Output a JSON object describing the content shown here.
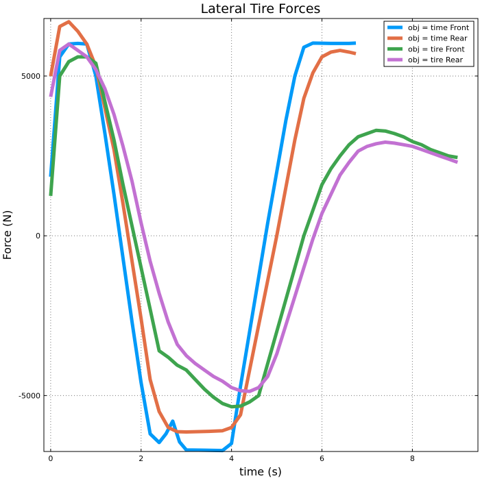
{
  "colors": {
    "background": "#ffffff",
    "axes": "#000000",
    "grid": "#000000"
  },
  "chart_data": {
    "type": "line",
    "title": "Lateral Tire Forces",
    "xlabel": "time (s)",
    "ylabel": "Force (N)",
    "xlim": [
      -0.15,
      9.45
    ],
    "ylim": [
      -6750,
      6800
    ],
    "xticks": [
      0,
      2,
      4,
      6,
      8
    ],
    "xtick_labels": [
      "0",
      "2",
      "4",
      "6",
      "8"
    ],
    "yticks": [
      -5000,
      0,
      5000
    ],
    "ytick_labels": [
      "-5000",
      "0",
      "5000"
    ],
    "grid": true,
    "legend_position": "top-right",
    "series": [
      {
        "name": "obj = time Front",
        "color": "#009af9",
        "points": [
          [
            0,
            1850
          ],
          [
            0.2,
            5600
          ],
          [
            0.4,
            6000
          ],
          [
            0.6,
            6020
          ],
          [
            0.8,
            6000
          ],
          [
            1.0,
            5000
          ],
          [
            1.2,
            3200
          ],
          [
            1.4,
            1300
          ],
          [
            1.6,
            -700
          ],
          [
            1.8,
            -2700
          ],
          [
            2.0,
            -4600
          ],
          [
            2.2,
            -6200
          ],
          [
            2.4,
            -6470
          ],
          [
            2.55,
            -6200
          ],
          [
            2.7,
            -5800
          ],
          [
            2.85,
            -6450
          ],
          [
            3.0,
            -6700
          ],
          [
            3.4,
            -6710
          ],
          [
            3.8,
            -6720
          ],
          [
            4.0,
            -6500
          ],
          [
            4.2,
            -4700
          ],
          [
            4.4,
            -3000
          ],
          [
            4.6,
            -1300
          ],
          [
            4.8,
            400
          ],
          [
            5.0,
            2000
          ],
          [
            5.2,
            3600
          ],
          [
            5.4,
            5000
          ],
          [
            5.6,
            5900
          ],
          [
            5.8,
            6030
          ],
          [
            6.2,
            6020
          ],
          [
            6.6,
            6020
          ],
          [
            6.75,
            6030
          ]
        ]
      },
      {
        "name": "obj = time Rear",
        "color": "#e26f46",
        "points": [
          [
            0,
            5000
          ],
          [
            0.2,
            6550
          ],
          [
            0.4,
            6700
          ],
          [
            0.6,
            6400
          ],
          [
            0.8,
            6000
          ],
          [
            1.0,
            5300
          ],
          [
            1.2,
            4000
          ],
          [
            1.4,
            2700
          ],
          [
            1.6,
            1000
          ],
          [
            1.8,
            -800
          ],
          [
            2.0,
            -2600
          ],
          [
            2.2,
            -4500
          ],
          [
            2.4,
            -5500
          ],
          [
            2.6,
            -6000
          ],
          [
            2.8,
            -6130
          ],
          [
            3.0,
            -6140
          ],
          [
            3.5,
            -6120
          ],
          [
            3.8,
            -6100
          ],
          [
            4.0,
            -6000
          ],
          [
            4.2,
            -5600
          ],
          [
            4.4,
            -4200
          ],
          [
            4.6,
            -2800
          ],
          [
            4.8,
            -1400
          ],
          [
            5.0,
            0
          ],
          [
            5.2,
            1500
          ],
          [
            5.4,
            3000
          ],
          [
            5.6,
            4300
          ],
          [
            5.8,
            5100
          ],
          [
            6.0,
            5600
          ],
          [
            6.2,
            5750
          ],
          [
            6.4,
            5800
          ],
          [
            6.6,
            5750
          ],
          [
            6.75,
            5700
          ]
        ]
      },
      {
        "name": "obj = tire Front",
        "color": "#3ea44e",
        "points": [
          [
            0,
            1250
          ],
          [
            0.2,
            5000
          ],
          [
            0.4,
            5450
          ],
          [
            0.6,
            5600
          ],
          [
            0.8,
            5600
          ],
          [
            1.0,
            5400
          ],
          [
            1.2,
            4200
          ],
          [
            1.4,
            3000
          ],
          [
            1.6,
            1600
          ],
          [
            1.8,
            300
          ],
          [
            2.0,
            -1000
          ],
          [
            2.2,
            -2300
          ],
          [
            2.4,
            -3600
          ],
          [
            2.6,
            -3800
          ],
          [
            2.8,
            -4050
          ],
          [
            3.0,
            -4200
          ],
          [
            3.2,
            -4500
          ],
          [
            3.4,
            -4800
          ],
          [
            3.6,
            -5050
          ],
          [
            3.8,
            -5250
          ],
          [
            4.0,
            -5350
          ],
          [
            4.2,
            -5330
          ],
          [
            4.4,
            -5200
          ],
          [
            4.6,
            -5000
          ],
          [
            4.8,
            -4000
          ],
          [
            5.0,
            -3000
          ],
          [
            5.2,
            -2000
          ],
          [
            5.4,
            -1000
          ],
          [
            5.6,
            0
          ],
          [
            5.8,
            800
          ],
          [
            6.0,
            1600
          ],
          [
            6.2,
            2100
          ],
          [
            6.4,
            2500
          ],
          [
            6.6,
            2850
          ],
          [
            6.8,
            3100
          ],
          [
            7.0,
            3200
          ],
          [
            7.2,
            3300
          ],
          [
            7.4,
            3280
          ],
          [
            7.6,
            3200
          ],
          [
            7.8,
            3100
          ],
          [
            8.0,
            2950
          ],
          [
            8.2,
            2850
          ],
          [
            8.4,
            2700
          ],
          [
            8.6,
            2600
          ],
          [
            8.8,
            2500
          ],
          [
            9.0,
            2450
          ]
        ]
      },
      {
        "name": "obj = tire Rear",
        "color": "#c271d2",
        "points": [
          [
            0,
            4350
          ],
          [
            0.2,
            5800
          ],
          [
            0.4,
            6000
          ],
          [
            0.6,
            5800
          ],
          [
            0.8,
            5600
          ],
          [
            1.0,
            5200
          ],
          [
            1.2,
            4600
          ],
          [
            1.4,
            3800
          ],
          [
            1.6,
            2800
          ],
          [
            1.8,
            1700
          ],
          [
            2.0,
            400
          ],
          [
            2.2,
            -800
          ],
          [
            2.4,
            -1800
          ],
          [
            2.6,
            -2700
          ],
          [
            2.8,
            -3400
          ],
          [
            3.0,
            -3750
          ],
          [
            3.2,
            -4000
          ],
          [
            3.4,
            -4200
          ],
          [
            3.6,
            -4400
          ],
          [
            3.8,
            -4550
          ],
          [
            4.0,
            -4750
          ],
          [
            4.2,
            -4850
          ],
          [
            4.4,
            -4870
          ],
          [
            4.6,
            -4750
          ],
          [
            4.8,
            -4400
          ],
          [
            5.0,
            -3700
          ],
          [
            5.2,
            -2800
          ],
          [
            5.4,
            -1900
          ],
          [
            5.6,
            -1000
          ],
          [
            5.8,
            -100
          ],
          [
            6.0,
            700
          ],
          [
            6.2,
            1300
          ],
          [
            6.4,
            1900
          ],
          [
            6.6,
            2300
          ],
          [
            6.8,
            2650
          ],
          [
            7.0,
            2800
          ],
          [
            7.2,
            2880
          ],
          [
            7.4,
            2930
          ],
          [
            7.6,
            2900
          ],
          [
            7.8,
            2850
          ],
          [
            8.0,
            2800
          ],
          [
            8.2,
            2700
          ],
          [
            8.4,
            2600
          ],
          [
            8.6,
            2500
          ],
          [
            8.8,
            2400
          ],
          [
            9.0,
            2300
          ]
        ]
      }
    ]
  }
}
